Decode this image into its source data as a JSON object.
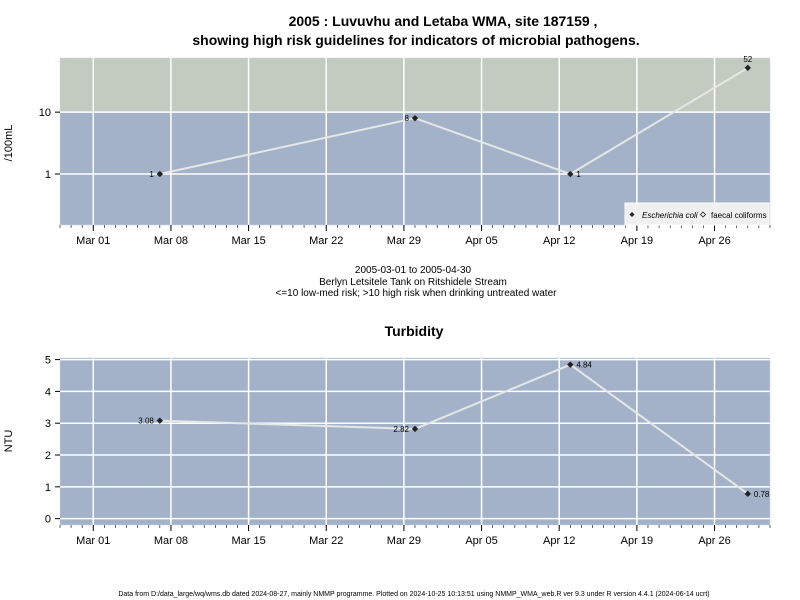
{
  "charts": [
    {
      "title_lines": [
        "2005 : Luvuvhu and Letaba WMA, site 187159 ,",
        "showing high risk guidelines for indicators of microbial pathogens."
      ],
      "subtitle_lines": [
        "2005-03-01 to 2005-04-30",
        "Berlyn Letsitele Tank on Ritshidele Stream",
        "<=10 low-med risk; >10 high risk when drinking untreated water"
      ],
      "ylabel": "/100mL",
      "x_ticks": [
        "Mar 01",
        "Mar 08",
        "Mar 15",
        "Mar 22",
        "Mar 29",
        "Apr 05",
        "Apr 12",
        "Apr 19",
        "Apr 26"
      ],
      "y_ticks": [
        "1",
        "10"
      ],
      "legend": {
        "items": [
          "Escherichia coli",
          "faecal coliforms"
        ]
      },
      "colors": {
        "low_band": "#a3b2c9",
        "high_band": "#c3cbc1",
        "line": "#e6e6e6"
      }
    },
    {
      "title": "Turbidity",
      "ylabel": "NTU",
      "x_ticks": [
        "Mar 01",
        "Mar 08",
        "Mar 15",
        "Mar 22",
        "Mar 29",
        "Apr 05",
        "Apr 12",
        "Apr 19",
        "Apr 26"
      ],
      "y_ticks": [
        "0",
        "1",
        "2",
        "3",
        "4",
        "5"
      ],
      "colors": {
        "band": "#a3b2c9",
        "line": "#e6e6e6"
      }
    }
  ],
  "chart_data": [
    {
      "type": "line",
      "scale": "log",
      "x": [
        "2005-03-07",
        "2005-03-30",
        "2005-04-13",
        "2005-04-29"
      ],
      "series": [
        {
          "name": "Escherichia coli",
          "values": [
            1,
            8,
            1,
            52
          ],
          "labels": [
            "1",
            "8",
            "1",
            "52"
          ]
        }
      ],
      "xlim": [
        "2005-02-26",
        "2005-05-01"
      ],
      "ylim": [
        0.15,
        75
      ],
      "guideline": 10,
      "grid": true,
      "legend_position": "bottom-right"
    },
    {
      "type": "line",
      "x": [
        "2005-03-07",
        "2005-03-30",
        "2005-04-13",
        "2005-04-29"
      ],
      "series": [
        {
          "values": [
            3.08,
            2.82,
            4.84,
            0.78
          ],
          "labels": [
            "3.08",
            "2.82",
            "4.84",
            "0.78"
          ]
        }
      ],
      "xlim": [
        "2005-02-26",
        "2005-05-01"
      ],
      "ylim": [
        -0.2,
        5.05
      ],
      "grid": true
    }
  ],
  "footer": "Data from D:/data_large/wq/wms.db dated 2024-08-27, mainly NMMP programme. Plotted on 2024-10-25 10:13:51 using NMMP_WMA_web.R ver 9.3 under R version 4.4.1 (2024-06-14 ucrt)"
}
